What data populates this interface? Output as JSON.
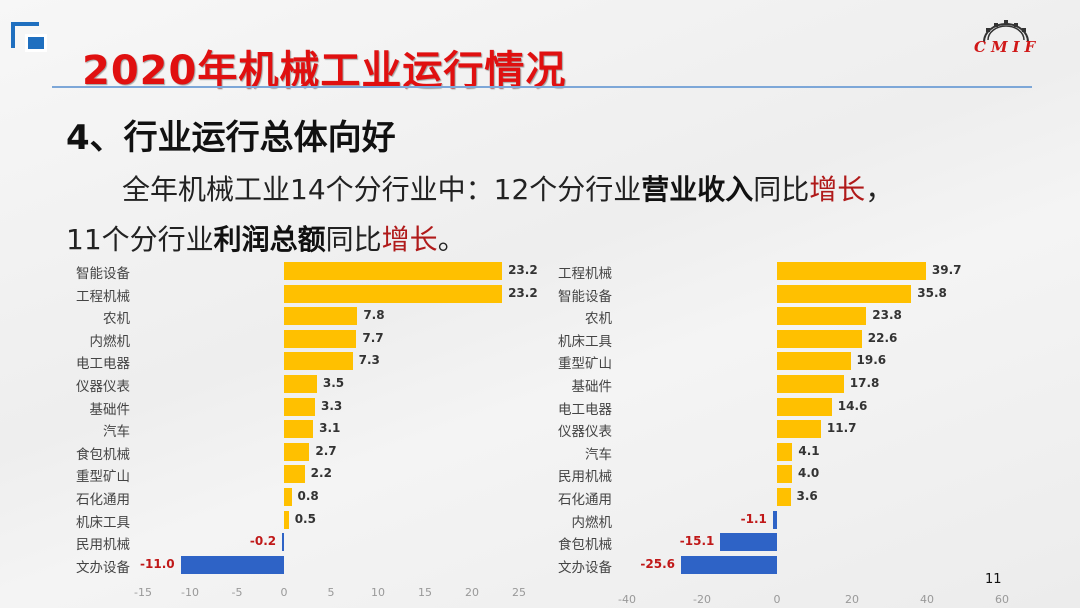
{
  "header": {
    "title": "2020年机械工业运行情况",
    "logo_text": "CMIF",
    "logo_icon": "gear-icon"
  },
  "section": {
    "heading": "4、行业运行总体向好",
    "line1": {
      "t1": "全年机械工业14个分行业中：12个分行业",
      "b1": "营业收入",
      "t2": "同比",
      "r1": "增长",
      "t3": "，"
    },
    "line2": {
      "t1": "11个分行业",
      "b1": "利润总额",
      "t2": "同比",
      "r1": "增长",
      "t3": "。"
    }
  },
  "colors": {
    "title_red": "#e01010",
    "positive_bar": "#ffc000",
    "negative_bar": "#2e63c6",
    "negative_label": "#c01818",
    "accent_blue": "#1f6fbf"
  },
  "chart_data": [
    {
      "type": "bar",
      "orientation": "horizontal",
      "title": "",
      "description": "营业收入同比增长(%)",
      "categories": [
        "智能设备",
        "工程机械",
        "农机",
        "内燃机",
        "电工电器",
        "仪器仪表",
        "基础件",
        "汽车",
        "食包机械",
        "重型矿山",
        "石化通用",
        "机床工具",
        "民用机械",
        "文办设备"
      ],
      "values": [
        23.2,
        23.2,
        7.8,
        7.7,
        7.3,
        3.5,
        3.3,
        3.1,
        2.7,
        2.2,
        0.8,
        0.5,
        -0.2,
        -11.0
      ],
      "labels": [
        "23.2",
        "23.2",
        "7.8",
        "7.7",
        "7.3",
        "3.5",
        "3.3",
        "3.1",
        "2.7",
        "2.2",
        "0.8",
        "0.5",
        "-0.2",
        "-11.0"
      ],
      "xlim": [
        -15,
        25
      ],
      "xticks": [
        "-15",
        "-10",
        "-5",
        "0",
        "5",
        "10",
        "15",
        "20",
        "25"
      ],
      "grid": false,
      "legend": null
    },
    {
      "type": "bar",
      "orientation": "horizontal",
      "title": "",
      "description": "利润总额同比增长(%)",
      "categories": [
        "工程机械",
        "智能设备",
        "农机",
        "机床工具",
        "重型矿山",
        "基础件",
        "电工电器",
        "仪器仪表",
        "汽车",
        "民用机械",
        "石化通用",
        "内燃机",
        "食包机械",
        "文办设备"
      ],
      "values": [
        39.7,
        35.8,
        23.8,
        22.6,
        19.6,
        17.8,
        14.6,
        11.7,
        4.1,
        4.0,
        3.6,
        -1.1,
        -15.1,
        -25.6
      ],
      "labels": [
        "39.7",
        "35.8",
        "23.8",
        "22.6",
        "19.6",
        "17.8",
        "14.6",
        "11.7",
        "4.1",
        "4.0",
        "3.6",
        "-1.1",
        "-15.1",
        "-25.6"
      ],
      "xlim": [
        -40,
        60
      ],
      "xticks": [
        "-40",
        "-20",
        "0",
        "20",
        "40",
        "60"
      ],
      "grid": false,
      "legend": null
    }
  ],
  "footer": {
    "page_number": "11"
  }
}
